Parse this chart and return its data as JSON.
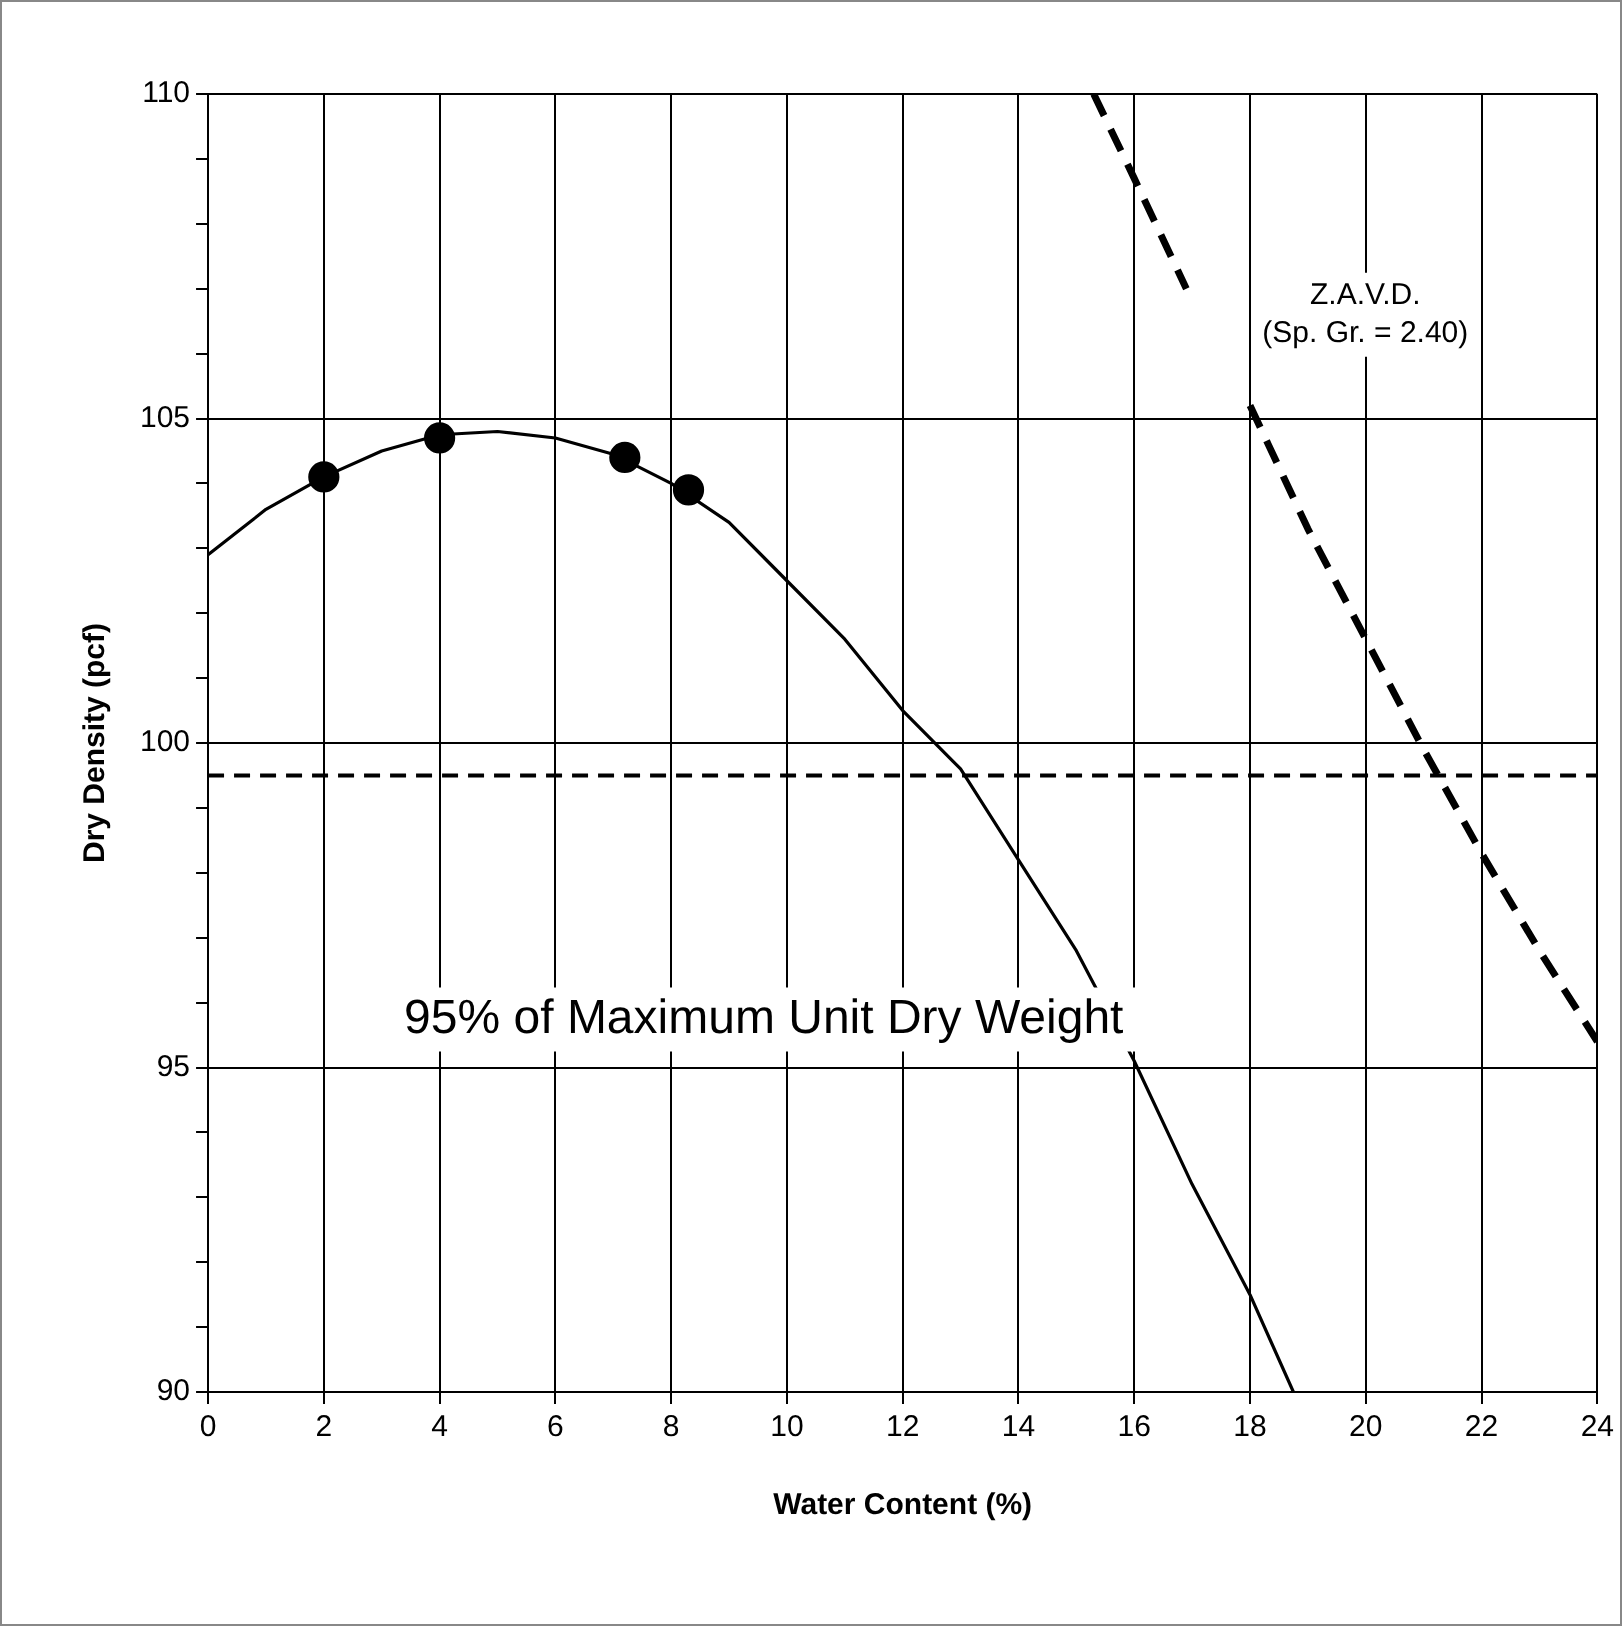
{
  "chart_data": {
    "type": "line",
    "xlabel": "Water Content (%)",
    "ylabel": "Dry Density (pcf)",
    "xlim": [
      0,
      24
    ],
    "xticks": [
      0,
      2,
      4,
      6,
      8,
      10,
      12,
      14,
      16,
      18,
      20,
      22,
      24
    ],
    "ylim": [
      90,
      110
    ],
    "yticks": [
      90,
      {
        "value": 91,
        "label": null
      },
      {
        "value": 92,
        "label": null
      },
      {
        "value": 93,
        "label": null
      },
      {
        "value": 94,
        "label": null
      },
      95,
      {
        "value": 96,
        "label": null
      },
      {
        "value": 97,
        "label": null
      },
      {
        "value": 98,
        "label": null
      },
      {
        "value": 99,
        "label": null
      },
      100,
      {
        "value": 101,
        "label": null
      },
      {
        "value": 102,
        "label": null
      },
      {
        "value": 103,
        "label": null
      },
      {
        "value": 104,
        "label": null
      },
      105,
      {
        "value": 106,
        "label": null
      },
      {
        "value": 107,
        "label": null
      },
      {
        "value": 108,
        "label": null
      },
      {
        "value": 109,
        "label": null
      },
      110
    ],
    "grid": true,
    "legend": false,
    "series": [
      {
        "type": "scatter",
        "color": "#000000",
        "marker": "circle",
        "x": [
          2,
          4,
          7.2,
          8.3
        ],
        "values": [
          104.1,
          104.7,
          104.4,
          103.9
        ]
      },
      {
        "type": "line",
        "color": "#000000",
        "marker": "none",
        "line_style": "solid",
        "x": [
          0,
          1,
          2,
          3,
          4,
          5,
          6,
          7,
          8,
          9,
          10,
          11,
          12,
          13,
          14,
          15,
          16,
          17,
          18,
          18.75
        ],
        "values": [
          102.9,
          103.6,
          104.1,
          104.5,
          104.75,
          104.8,
          104.7,
          104.45,
          104.0,
          103.4,
          102.5,
          101.6,
          100.5,
          99.6,
          98.2,
          96.8,
          95.1,
          93.2,
          91.5,
          90
        ]
      },
      {
        "type": "line",
        "color": "#000000",
        "marker": "none",
        "line_style": "dashed",
        "x": [
          15.3,
          16,
          16.9,
          17.5,
          18,
          19,
          20,
          21,
          22,
          23,
          24
        ],
        "values": [
          110,
          108.7,
          107,
          null,
          105.2,
          103.3,
          101.6,
          99.9,
          98.3,
          96.8,
          95.4
        ]
      }
    ],
    "ref_lines": [
      {
        "axis": "y",
        "value": 99.5,
        "label": "95% of Maximum Unit Dry Weight",
        "color": "#000000",
        "line_style": "dashed"
      }
    ],
    "annotations": [
      "Z.A.V.D.\n(Sp. Gr. = 2.40)"
    ]
  }
}
